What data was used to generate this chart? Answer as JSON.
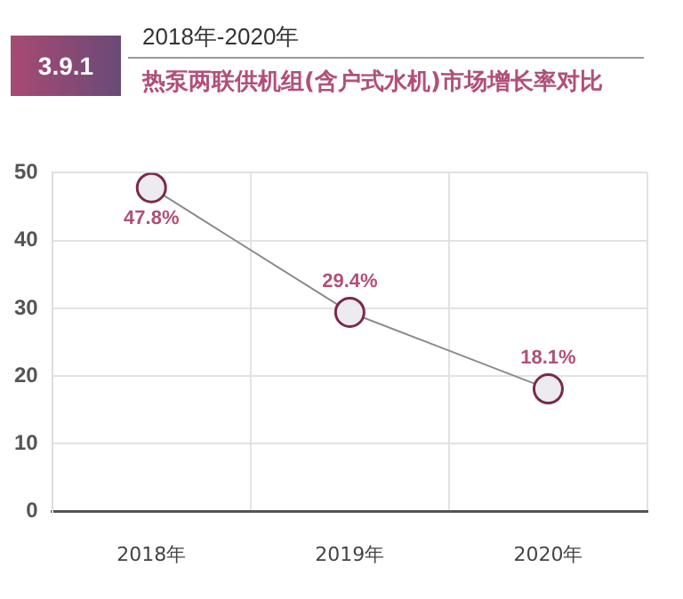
{
  "chart_data": {
    "type": "line",
    "title": "热泵两联供机组(含户式水机)市场增长率对比",
    "subtitle": "2018年-2020年",
    "annotations": [
      "3.9.1"
    ],
    "categories": [
      "2018年",
      "2019年",
      "2020年"
    ],
    "series": [
      {
        "color": "#7a2a4a",
        "values": [
          47.8,
          29.4,
          18.1
        ],
        "value_labels": [
          "47.8%",
          "29.4%",
          "18.1%"
        ]
      }
    ],
    "ylim": [
      0,
      50
    ],
    "yticks": [
      0,
      10,
      20,
      30,
      40,
      50
    ],
    "grid": true,
    "legend": false,
    "marker": "circle",
    "line_style": "solid"
  }
}
